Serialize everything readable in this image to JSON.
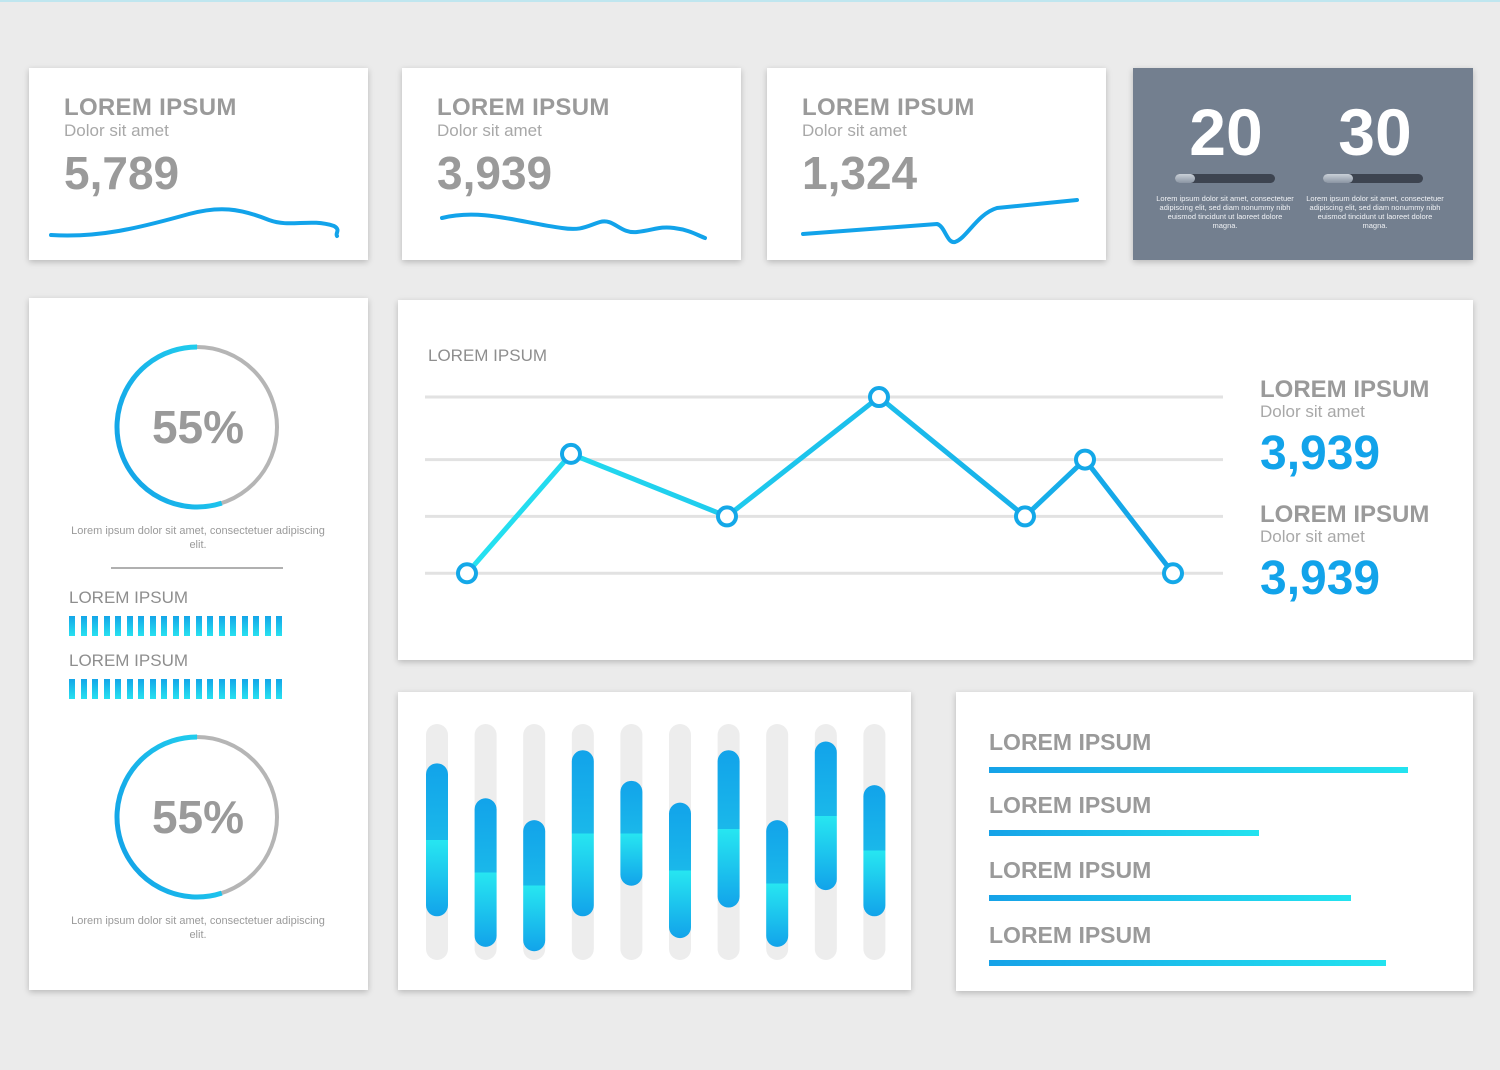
{
  "stat_cards": [
    {
      "title": "LOREM IPSUM",
      "subtitle": "Dolor sit amet",
      "value": "5,789"
    },
    {
      "title": "LOREM IPSUM",
      "subtitle": "Dolor sit amet",
      "value": "3,939"
    },
    {
      "title": "LOREM IPSUM",
      "subtitle": "Dolor sit amet",
      "value": "1,324"
    }
  ],
  "counters": [
    {
      "value": "20",
      "progress": 0.2,
      "text": "Lorem ipsum dolor sit amet, consectetuer adipiscing elit, sed diam nonummy nibh euismod tincidunt ut laoreet dolore magna."
    },
    {
      "value": "30",
      "progress": 0.3,
      "text": "Lorem ipsum dolor sit amet, consectetuer adipiscing elit, sed diam nonummy nibh euismod tincidunt ut laoreet dolore magna."
    }
  ],
  "donuts": [
    {
      "percent_label": "55%",
      "percent": 55,
      "caption": "Lorem ipsum dolor sit amet, consectetuer adipiscing elit."
    },
    {
      "percent_label": "55%",
      "percent": 55,
      "caption": "Lorem ipsum dolor sit amet, consectetuer adipiscing elit."
    }
  ],
  "side_progress": [
    {
      "label": "LOREM IPSUM"
    },
    {
      "label": "LOREM IPSUM"
    }
  ],
  "line_panel": {
    "title": "LOREM IPSUM",
    "legend": [
      {
        "title": "LOREM IPSUM",
        "subtitle": "Dolor sit amet",
        "value": "3,939"
      },
      {
        "title": "LOREM IPSUM",
        "subtitle": "Dolor sit amet",
        "value": "3,939"
      }
    ]
  },
  "hbars": [
    {
      "label": "LOREM IPSUM",
      "fraction": 0.96
    },
    {
      "label": "LOREM IPSUM",
      "fraction": 0.62
    },
    {
      "label": "LOREM IPSUM",
      "fraction": 0.83
    },
    {
      "label": "LOREM IPSUM",
      "fraction": 0.91
    }
  ],
  "colors": {
    "accent_blue": "#12a3ea",
    "accent_cyan": "#25e2f0",
    "dark_panel": "#737f8f"
  },
  "chart_data": [
    {
      "type": "line",
      "title": "LOREM IPSUM",
      "x": [
        1,
        2,
        3,
        4,
        5,
        6,
        7
      ],
      "series": [
        {
          "values": [
            1,
            3.1,
            2,
            4.1,
            2,
            3,
            1
          ]
        }
      ],
      "ylim": [
        0.6,
        4.4
      ],
      "grid": true
    },
    {
      "type": "bar",
      "note_series": "range bars",
      "series": [
        {
          "low": 1.0,
          "high": 4.5
        },
        {
          "low": 0.3,
          "high": 3.7
        },
        {
          "low": 0.2,
          "high": 3.2
        },
        {
          "low": 1.0,
          "high": 4.8
        },
        {
          "low": 1.7,
          "high": 4.1
        },
        {
          "low": 0.5,
          "high": 3.6
        },
        {
          "low": 1.2,
          "high": 4.8
        },
        {
          "low": 0.3,
          "high": 3.2
        },
        {
          "low": 1.6,
          "high": 5.0
        },
        {
          "low": 1.0,
          "high": 4.0
        }
      ],
      "ylim": [
        0,
        5.4
      ]
    }
  ]
}
